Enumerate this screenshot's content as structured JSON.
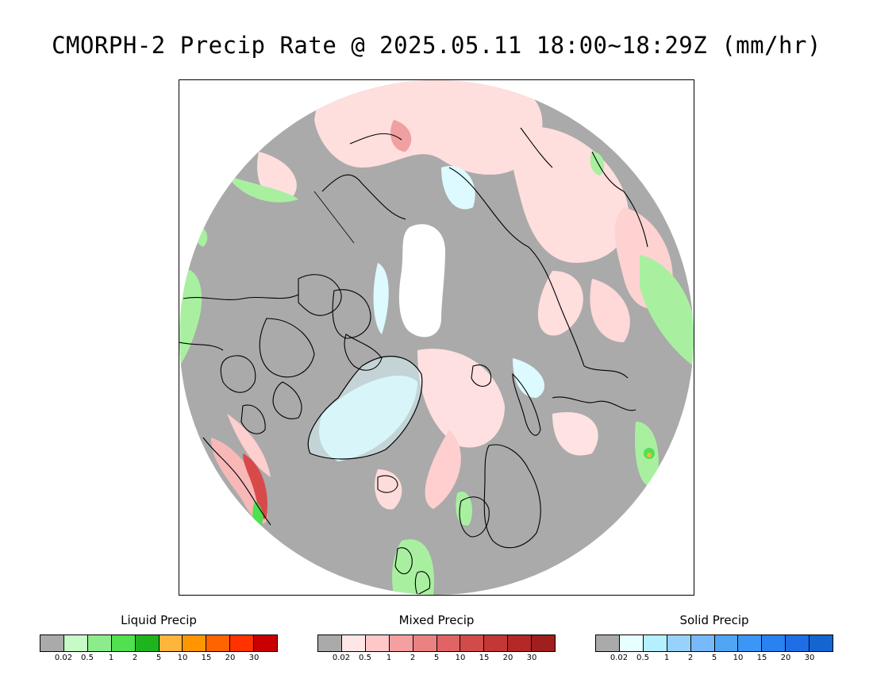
{
  "title": "CMORPH-2 Precip Rate @ 2025.05.11 18:00~18:29Z (mm/hr)",
  "map": {
    "projection": "north polar stereographic",
    "colors": {
      "background_no_precip": "#aaaaaa",
      "ice_cap": "#ffffff",
      "coastline": "#000000",
      "light_mixed": "#ffdede",
      "light_solid": "#dcfaff",
      "light_liquid": "#a8f0a0"
    }
  },
  "legends": [
    {
      "title": "Liquid Precip",
      "colors": [
        "#aaaaaa",
        "#c8fac8",
        "#8cec8c",
        "#50e050",
        "#1eb41e",
        "#ffb43c",
        "#ff9600",
        "#ff6400",
        "#ff3200",
        "#c80000"
      ],
      "ticks": [
        "0.02",
        "0.5",
        "1",
        "2",
        "5",
        "10",
        "15",
        "20",
        "30"
      ]
    },
    {
      "title": "Mixed Precip",
      "colors": [
        "#aaaaaa",
        "#ffe6e6",
        "#ffc8c8",
        "#f5a0a0",
        "#eb8282",
        "#e16464",
        "#d24b4b",
        "#c33737",
        "#b42828",
        "#a01e1e"
      ],
      "ticks": [
        "0.02",
        "0.5",
        "1",
        "2",
        "5",
        "10",
        "15",
        "20",
        "30"
      ]
    },
    {
      "title": "Solid Precip",
      "colors": [
        "#aaaaaa",
        "#e6ffff",
        "#b4f0ff",
        "#96d2fa",
        "#78b9fa",
        "#50a5f5",
        "#3c96f5",
        "#2882f0",
        "#1e6ee6",
        "#1464d2"
      ],
      "ticks": [
        "0.02",
        "0.5",
        "1",
        "2",
        "5",
        "10",
        "15",
        "20",
        "30"
      ]
    }
  ]
}
